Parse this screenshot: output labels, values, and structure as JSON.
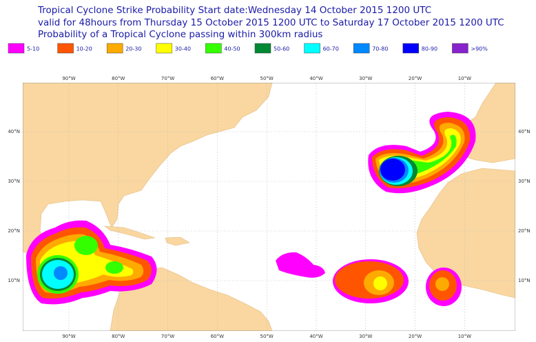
{
  "header": {
    "lines": [
      "Tropical Cyclone Strike Probability Start date:Wednesday 14 October 2015 1200 UTC",
      "valid for 48hours from Thursday 15 October 2015 1200 UTC to  Saturday 17 October 2015 1200 UTC",
      "Probability of a Tropical Cyclone passing within 300km radius"
    ]
  },
  "legend": [
    {
      "label": "5-10",
      "color": "#ff00ff"
    },
    {
      "label": "10-20",
      "color": "#ff5500"
    },
    {
      "label": "20-30",
      "color": "#ffaa00"
    },
    {
      "label": "30-40",
      "color": "#ffff00"
    },
    {
      "label": "40-50",
      "color": "#33ff00"
    },
    {
      "label": "50-60",
      "color": "#008833"
    },
    {
      "label": "60-70",
      "color": "#00ffff"
    },
    {
      "label": "70-80",
      "color": "#0088ff"
    },
    {
      "label": "80-90",
      "color": "#0000ff"
    },
    {
      "label": ">90%",
      "color": "#8822cc"
    }
  ],
  "map": {
    "lon_labels": [
      "90°W",
      "80°W",
      "70°W",
      "60°W",
      "50°W",
      "40°W",
      "30°W",
      "20°W",
      "10°W"
    ],
    "lat_labels": [
      "40°N",
      "30°N",
      "20°N",
      "10°N"
    ]
  }
}
